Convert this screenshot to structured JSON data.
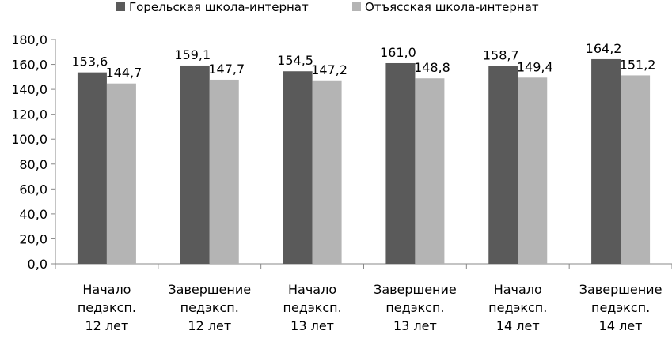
{
  "chart_data": {
    "type": "bar",
    "categories": [
      [
        "Начало",
        "педэксп.",
        "12 лет"
      ],
      [
        "Завершение",
        "педэксп.",
        "12 лет"
      ],
      [
        "Начало",
        "педэксп.",
        "13 лет"
      ],
      [
        "Завершение",
        "педэксп.",
        "13 лет"
      ],
      [
        "Начало",
        "педэксп.",
        "14 лет"
      ],
      [
        "Завершение",
        "педэксп.",
        "14 лет"
      ]
    ],
    "series": [
      {
        "name": "Горельская школа-интернат",
        "values": [
          153.6,
          159.1,
          154.5,
          161.0,
          158.7,
          164.2
        ],
        "color": "#5a5a5a"
      },
      {
        "name": "Отъясская школа-интернат",
        "values": [
          144.7,
          147.7,
          147.2,
          148.8,
          149.4,
          151.2
        ],
        "color": "#b4b4b4"
      }
    ],
    "data_labels": [
      [
        "153,6",
        "159,1",
        "154,5",
        "161,0",
        "158,7",
        "164,2"
      ],
      [
        "144,7",
        "147,7",
        "147,2",
        "148,8",
        "149,4",
        "151,2"
      ]
    ],
    "y_ticks": [
      "0,0",
      "20,0",
      "40,0",
      "60,0",
      "80,0",
      "100,0",
      "120,0",
      "140,0",
      "160,0",
      "180,0"
    ],
    "ylim": [
      0,
      180
    ],
    "title": "",
    "xlabel": "",
    "ylabel": "",
    "legend": "top",
    "grid": false
  }
}
